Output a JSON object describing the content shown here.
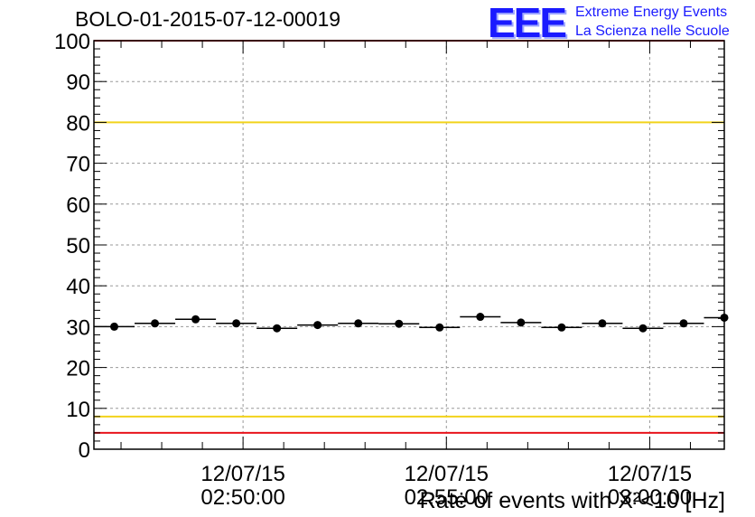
{
  "header": {
    "run_title": "BOLO-01-2015-07-12-00019"
  },
  "logo": {
    "mark": "EEE",
    "line1": "Extreme Energy Events",
    "line2": "La Scienza nelle Scuole",
    "color": "#1a1aff"
  },
  "chart_data": {
    "type": "scatter",
    "title": "BOLO-01-2015-07-12-00019",
    "xlabel": "",
    "ylabel": "Rate of events with X²<10 [Hz]",
    "x_axis": "time",
    "xlim": [
      "02:46:20",
      "03:01:50"
    ],
    "ylim": [
      0,
      100
    ],
    "y_ticks": [
      0,
      10,
      20,
      30,
      40,
      50,
      60,
      70,
      80,
      90,
      100
    ],
    "x_tick_labels": [
      {
        "time": "02:50:00",
        "date": "12/07/15"
      },
      {
        "time": "02:55:00",
        "date": "12/07/15"
      },
      {
        "time": "03:00:00",
        "date": "12/07/15"
      }
    ],
    "grid": true,
    "points": [
      {
        "x": "02:46:50",
        "y": 30.0
      },
      {
        "x": "02:47:50",
        "y": 30.8
      },
      {
        "x": "02:48:50",
        "y": 31.8
      },
      {
        "x": "02:49:50",
        "y": 30.8
      },
      {
        "x": "02:50:50",
        "y": 29.6
      },
      {
        "x": "02:51:50",
        "y": 30.4
      },
      {
        "x": "02:52:50",
        "y": 30.8
      },
      {
        "x": "02:53:50",
        "y": 30.7
      },
      {
        "x": "02:54:50",
        "y": 29.8
      },
      {
        "x": "02:55:50",
        "y": 32.4
      },
      {
        "x": "02:56:50",
        "y": 31.0
      },
      {
        "x": "02:57:50",
        "y": 29.8
      },
      {
        "x": "02:58:50",
        "y": 30.8
      },
      {
        "x": "02:59:50",
        "y": 29.6
      },
      {
        "x": "03:00:50",
        "y": 30.8
      },
      {
        "x": "03:01:50",
        "y": 32.2
      }
    ],
    "bin_width_seconds": 60,
    "reference_lines": [
      {
        "y": 100,
        "color": "#e8141c"
      },
      {
        "y": 80,
        "color": "#f2d31b"
      },
      {
        "y": 8,
        "color": "#f2d31b"
      },
      {
        "y": 4,
        "color": "#e8141c"
      }
    ]
  }
}
